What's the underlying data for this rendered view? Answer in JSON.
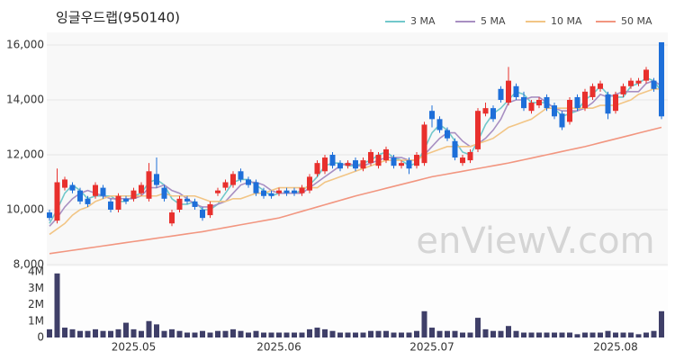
{
  "chart_data": [
    {
      "type": "candlestick",
      "title": "잉글우드랩(950140)",
      "watermark": "enViewV.com",
      "categories": [
        null,
        null,
        null,
        null,
        null,
        null,
        null,
        null,
        null,
        null,
        null,
        "2025.05",
        null,
        null,
        null,
        null,
        null,
        null,
        null,
        null,
        null,
        null,
        null,
        null,
        null,
        null,
        null,
        null,
        null,
        null,
        "2025.06",
        null,
        null,
        null,
        null,
        null,
        null,
        null,
        null,
        null,
        null,
        null,
        null,
        null,
        null,
        null,
        null,
        null,
        null,
        null,
        "2025.07",
        null,
        null,
        null,
        null,
        null,
        null,
        null,
        null,
        null,
        null,
        null,
        null,
        null,
        null,
        null,
        null,
        null,
        null,
        null,
        null,
        null,
        null,
        null,
        "2025.08",
        null,
        null,
        null,
        null,
        null,
        null
      ],
      "open": [
        9900,
        9600,
        10800,
        10900,
        10700,
        10400,
        10500,
        10800,
        10300,
        10000,
        10400,
        10400,
        10600,
        10400,
        11300,
        10800,
        9500,
        10000,
        10400,
        10300,
        10000,
        9800,
        10600,
        10800,
        10900,
        11400,
        11100,
        11000,
        10700,
        10600,
        10600,
        10700,
        10700,
        10600,
        10700,
        11300,
        11400,
        12000,
        11700,
        11600,
        11800,
        11500,
        11700,
        11600,
        11800,
        11900,
        11600,
        11800,
        11600,
        11700,
        13600,
        13300,
        12900,
        12500,
        11700,
        11800,
        12200,
        13500,
        13700,
        14400,
        13900,
        14500,
        14100,
        13600,
        13800,
        14100,
        13800,
        13500,
        13200,
        14100,
        13700,
        14100,
        14400,
        14200,
        13600,
        14200,
        14500,
        14600,
        14700,
        14700,
        16100
      ],
      "high": [
        10000,
        11500,
        11200,
        11000,
        10800,
        10500,
        11000,
        10900,
        10400,
        10600,
        10500,
        10800,
        11000,
        11700,
        11900,
        10900,
        10000,
        10500,
        10500,
        10400,
        10100,
        10300,
        10800,
        11100,
        11400,
        11500,
        11200,
        11100,
        10800,
        10700,
        10800,
        10800,
        10800,
        10900,
        11300,
        11800,
        12000,
        12100,
        11800,
        11800,
        11900,
        11900,
        12200,
        12100,
        12300,
        12000,
        11800,
        11900,
        12100,
        13200,
        13800,
        13400,
        13000,
        12600,
        12000,
        12200,
        13700,
        13900,
        13800,
        14500,
        15200,
        14600,
        14300,
        14000,
        14100,
        14200,
        13900,
        13600,
        14100,
        14200,
        14400,
        14600,
        14700,
        14300,
        14300,
        14600,
        14800,
        14800,
        15200,
        14800,
        16100
      ],
      "low": [
        9600,
        9500,
        10700,
        10600,
        10200,
        10100,
        10400,
        10400,
        9900,
        9900,
        10200,
        10300,
        10500,
        10300,
        10800,
        10300,
        9400,
        9900,
        10200,
        10000,
        9600,
        9700,
        10500,
        10700,
        10800,
        11000,
        10800,
        10500,
        10400,
        10400,
        10500,
        10500,
        10500,
        10500,
        10600,
        11200,
        11300,
        11500,
        11400,
        11500,
        11400,
        11400,
        11600,
        11500,
        11700,
        11500,
        11500,
        11300,
        11500,
        11600,
        13000,
        12800,
        12500,
        11800,
        11600,
        11700,
        12100,
        13400,
        13200,
        13900,
        13800,
        14000,
        13600,
        13500,
        13700,
        13600,
        13300,
        12900,
        13100,
        13600,
        13600,
        14000,
        14300,
        13300,
        13500,
        14100,
        14400,
        14500,
        14600,
        14300,
        13300
      ],
      "close": [
        9700,
        11000,
        11100,
        10700,
        10300,
        10200,
        10900,
        10500,
        10000,
        10500,
        10300,
        10700,
        10900,
        11400,
        10900,
        10400,
        9900,
        10400,
        10300,
        10100,
        9700,
        10200,
        10700,
        11000,
        11300,
        11100,
        10900,
        10600,
        10500,
        10500,
        10700,
        10600,
        10600,
        10800,
        11200,
        11700,
        11900,
        11600,
        11500,
        11700,
        11500,
        11800,
        12100,
        12000,
        12200,
        11600,
        11700,
        11500,
        12000,
        13100,
        13300,
        12900,
        12600,
        11900,
        11900,
        12100,
        13600,
        13700,
        13300,
        14000,
        14700,
        14100,
        13700,
        13900,
        14000,
        13700,
        13400,
        13000,
        14000,
        13700,
        14300,
        14500,
        14600,
        13500,
        14200,
        14500,
        14700,
        14700,
        15100,
        14400,
        13400
      ],
      "up_color": "#e8302d",
      "down_color": "#1e6fd9",
      "series": [
        {
          "name": "3 MA",
          "color": "#72c8cb",
          "values": [
            9500,
            10000,
            10600,
            10900,
            10700,
            10400,
            10500,
            10500,
            10500,
            10300,
            10300,
            10500,
            10600,
            11000,
            11100,
            10900,
            10400,
            10200,
            10200,
            10300,
            10000,
            10000,
            10200,
            10600,
            11000,
            11100,
            11100,
            10900,
            10700,
            10500,
            10600,
            10600,
            10600,
            10700,
            10900,
            11200,
            11600,
            11700,
            11700,
            11600,
            11600,
            11700,
            11800,
            12000,
            12100,
            11900,
            11800,
            11600,
            11700,
            12200,
            12800,
            13100,
            12900,
            12500,
            12100,
            12000,
            12500,
            13100,
            13500,
            13700,
            14000,
            14300,
            14200,
            13900,
            13900,
            13900,
            13700,
            13400,
            13500,
            13600,
            14000,
            14200,
            14500,
            14200,
            14100,
            14100,
            14500,
            14600,
            14800,
            14700,
            14300
          ]
        },
        {
          "name": "5 MA",
          "color": "#a88fc2",
          "values": [
            9400,
            9700,
            10100,
            10400,
            10600,
            10700,
            10600,
            10500,
            10400,
            10400,
            10400,
            10400,
            10500,
            10800,
            10800,
            10900,
            10700,
            10600,
            10400,
            10200,
            10100,
            10100,
            10200,
            10300,
            10600,
            10900,
            11000,
            11000,
            10900,
            10700,
            10600,
            10600,
            10600,
            10600,
            10800,
            11000,
            11200,
            11400,
            11600,
            11700,
            11600,
            11600,
            11700,
            11800,
            11900,
            11900,
            11900,
            11800,
            11800,
            12000,
            12300,
            12600,
            12800,
            12800,
            12500,
            12300,
            12400,
            12600,
            12900,
            13300,
            13900,
            14000,
            14000,
            14100,
            14100,
            13900,
            13700,
            13600,
            13600,
            13600,
            13700,
            13900,
            14200,
            14100,
            14200,
            14300,
            14300,
            14300,
            14600,
            14700,
            14500
          ]
        },
        {
          "name": "10 MA",
          "color": "#f2c585",
          "values": [
            9100,
            9300,
            9500,
            9800,
            10000,
            10100,
            10300,
            10400,
            10500,
            10500,
            10500,
            10500,
            10500,
            10500,
            10500,
            10600,
            10500,
            10500,
            10500,
            10500,
            10400,
            10300,
            10300,
            10300,
            10400,
            10400,
            10500,
            10600,
            10600,
            10700,
            10800,
            10800,
            10800,
            10800,
            10800,
            10800,
            11000,
            11100,
            11200,
            11300,
            11400,
            11500,
            11600,
            11700,
            11800,
            11800,
            11800,
            11800,
            11800,
            12000,
            12100,
            12200,
            12300,
            12300,
            12300,
            12300,
            12400,
            12500,
            12600,
            12800,
            13000,
            13100,
            13200,
            13300,
            13500,
            13700,
            13700,
            13700,
            13700,
            13700,
            13700,
            13700,
            13800,
            13800,
            13800,
            13900,
            14000,
            14200,
            14300,
            14400,
            14400
          ]
        },
        {
          "name": "50 MA",
          "color": "#f29680",
          "values": [
            8400,
            8440,
            8480,
            8520,
            8560,
            8600,
            8640,
            8680,
            8720,
            8760,
            8800,
            8840,
            8880,
            8920,
            8960,
            9000,
            9040,
            9080,
            9120,
            9160,
            9200,
            9250,
            9300,
            9350,
            9400,
            9450,
            9500,
            9550,
            9600,
            9650,
            9700,
            9780,
            9860,
            9940,
            10020,
            10100,
            10180,
            10260,
            10340,
            10420,
            10500,
            10570,
            10640,
            10710,
            10780,
            10850,
            10920,
            10990,
            11060,
            11130,
            11200,
            11250,
            11300,
            11350,
            11400,
            11450,
            11500,
            11550,
            11600,
            11650,
            11700,
            11760,
            11820,
            11880,
            11940,
            12000,
            12060,
            12120,
            12180,
            12240,
            12300,
            12370,
            12440,
            12510,
            12580,
            12650,
            12720,
            12790,
            12860,
            12930,
            13000
          ]
        }
      ],
      "legend": "top-right",
      "grid": true,
      "ylim": [
        8000,
        16000
      ],
      "yticks": [
        {
          "value": 8000,
          "label": "8,000"
        },
        {
          "value": 10000,
          "label": "10,000"
        },
        {
          "value": 12000,
          "label": "12,000"
        },
        {
          "value": 14000,
          "label": "14,000"
        },
        {
          "value": 16000,
          "label": "16,000"
        }
      ]
    },
    {
      "type": "bar",
      "color": "#3f3f68",
      "values": [
        500000,
        3900000,
        600000,
        500000,
        400000,
        400000,
        500000,
        400000,
        400000,
        500000,
        900000,
        500000,
        400000,
        1000000,
        800000,
        400000,
        500000,
        400000,
        300000,
        300000,
        400000,
        300000,
        400000,
        400000,
        500000,
        400000,
        300000,
        400000,
        300000,
        300000,
        300000,
        300000,
        300000,
        300000,
        500000,
        600000,
        500000,
        400000,
        300000,
        300000,
        300000,
        300000,
        400000,
        400000,
        400000,
        300000,
        300000,
        300000,
        400000,
        1600000,
        600000,
        400000,
        400000,
        400000,
        300000,
        300000,
        1200000,
        500000,
        400000,
        400000,
        700000,
        400000,
        300000,
        300000,
        300000,
        300000,
        300000,
        300000,
        300000,
        200000,
        300000,
        300000,
        300000,
        400000,
        300000,
        300000,
        300000,
        200000,
        300000,
        400000,
        1600000
      ],
      "ylim": [
        0,
        4000000
      ],
      "yticks": [
        0,
        {
          "value": 1000000,
          "label": "1M"
        },
        {
          "value": 2000000,
          "label": "2M"
        },
        {
          "value": 3000000,
          "label": "3M"
        },
        {
          "value": 4000000,
          "label": "4M"
        }
      ]
    }
  ]
}
